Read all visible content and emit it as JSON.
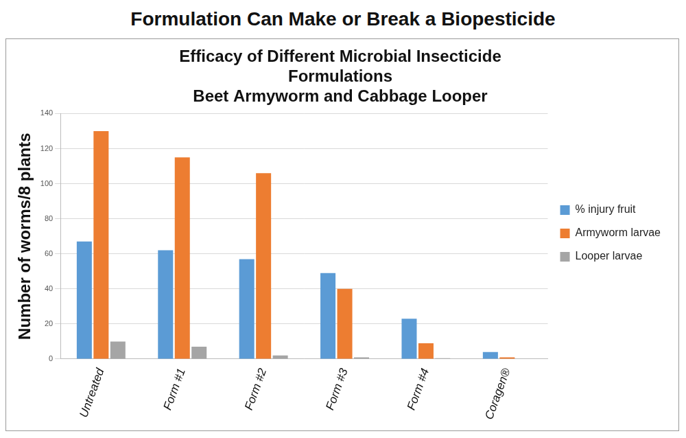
{
  "page_title": "Formulation Can Make or Break a Biopesticide",
  "chart_data": {
    "type": "bar",
    "title": "Efficacy of Different Microbial Insecticide Formulations",
    "subtitle": "Beet Armyworm and Cabbage Looper",
    "y_label": "Number of worms/8 plants",
    "categories": [
      "Untreated",
      "Form #1",
      "Form #2",
      "Form #3",
      "Form #4",
      "Coragen®"
    ],
    "series": [
      {
        "name": "% injury fruit",
        "color": "#5b9bd5",
        "values": [
          67,
          62,
          57,
          49,
          23,
          4
        ]
      },
      {
        "name": "Armyworm larvae",
        "color": "#ed7d31",
        "values": [
          130,
          115,
          106,
          40,
          9,
          1
        ]
      },
      {
        "name": "Looper larvae",
        "color": "#a5a5a5",
        "values": [
          10,
          7,
          2,
          1,
          0.5,
          0
        ]
      }
    ],
    "ylim": [
      0,
      140
    ],
    "yticks": [
      0,
      20,
      40,
      60,
      80,
      100,
      120,
      140
    ],
    "grid": true,
    "legend": "right"
  }
}
